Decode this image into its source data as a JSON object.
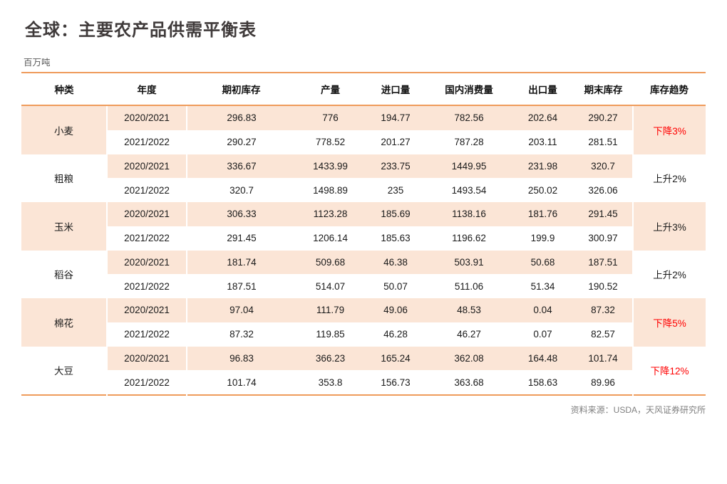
{
  "page": {
    "source": "资料来源：USDA，天风证券研究所"
  },
  "colors": {
    "accent_orange_line": "#ef9b5b",
    "cell_fill_peach": "#fbe5d6",
    "trend_down_red": "#ff0000",
    "title_text": "#3f3a3a",
    "muted_text": "#808080"
  },
  "chart_data": {
    "type": "table",
    "title": "全球：主要农产品供需平衡表",
    "unit": "百万吨",
    "columns": [
      "种类",
      "年度",
      "期初库存",
      "产量",
      "进口量",
      "国内消费量",
      "出口量",
      "期末库存",
      "库存趋势"
    ],
    "groups": [
      {
        "name": "小麦",
        "trend": {
          "label": "下降3%",
          "direction": "down"
        },
        "rows": [
          {
            "year": "2020/2021",
            "values": [
              "296.83",
              "776",
              "194.77",
              "782.56",
              "202.64",
              "290.27"
            ]
          },
          {
            "year": "2021/2022",
            "values": [
              "290.27",
              "778.52",
              "201.27",
              "787.28",
              "203.11",
              "281.51"
            ]
          }
        ]
      },
      {
        "name": "粗粮",
        "trend": {
          "label": "上升2%",
          "direction": "up"
        },
        "rows": [
          {
            "year": "2020/2021",
            "values": [
              "336.67",
              "1433.99",
              "233.75",
              "1449.95",
              "231.98",
              "320.7"
            ]
          },
          {
            "year": "2021/2022",
            "values": [
              "320.7",
              "1498.89",
              "235",
              "1493.54",
              "250.02",
              "326.06"
            ]
          }
        ]
      },
      {
        "name": "玉米",
        "trend": {
          "label": "上升3%",
          "direction": "up"
        },
        "rows": [
          {
            "year": "2020/2021",
            "values": [
              "306.33",
              "1123.28",
              "185.69",
              "1138.16",
              "181.76",
              "291.45"
            ]
          },
          {
            "year": "2021/2022",
            "values": [
              "291.45",
              "1206.14",
              "185.63",
              "1196.62",
              "199.9",
              "300.97"
            ]
          }
        ]
      },
      {
        "name": "稻谷",
        "trend": {
          "label": "上升2%",
          "direction": "up"
        },
        "rows": [
          {
            "year": "2020/2021",
            "values": [
              "181.74",
              "509.68",
              "46.38",
              "503.91",
              "50.68",
              "187.51"
            ]
          },
          {
            "year": "2021/2022",
            "values": [
              "187.51",
              "514.07",
              "50.07",
              "511.06",
              "51.34",
              "190.52"
            ]
          }
        ]
      },
      {
        "name": "棉花",
        "trend": {
          "label": "下降5%",
          "direction": "down"
        },
        "rows": [
          {
            "year": "2020/2021",
            "values": [
              "97.04",
              "111.79",
              "49.06",
              "48.53",
              "0.04",
              "87.32"
            ]
          },
          {
            "year": "2021/2022",
            "values": [
              "87.32",
              "119.85",
              "46.28",
              "46.27",
              "0.07",
              "82.57"
            ]
          }
        ]
      },
      {
        "name": "大豆",
        "trend": {
          "label": "下降12%",
          "direction": "down"
        },
        "rows": [
          {
            "year": "2020/2021",
            "values": [
              "96.83",
              "366.23",
              "165.24",
              "362.08",
              "164.48",
              "101.74"
            ]
          },
          {
            "year": "2021/2022",
            "values": [
              "101.74",
              "353.8",
              "156.73",
              "363.68",
              "158.63",
              "89.96"
            ]
          }
        ]
      }
    ]
  }
}
